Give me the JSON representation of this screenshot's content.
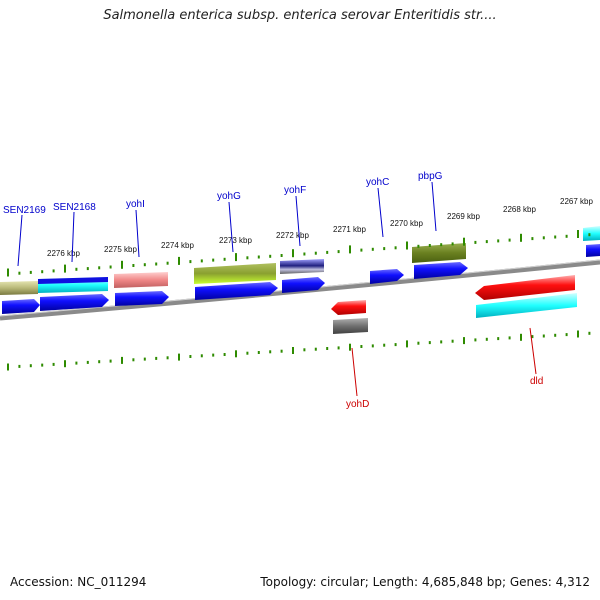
{
  "title": "Salmonella enterica subsp. enterica serovar Enteritidis str....",
  "footer": {
    "accession": "Accession: NC_011294",
    "info": "Topology: circular; Length: 4,685,848 bp; Genes: 4,312"
  },
  "colors": {
    "gene_label_top": "#0000cc",
    "gene_label_bottom": "#cc0000",
    "tick": "#2e8b00",
    "backbone": "#888888"
  },
  "scale_labels": [
    "2276 kbp",
    "2275 kbp",
    "2274 kbp",
    "2273 kbp",
    "2272 kbp",
    "2271 kbp",
    "2270 kbp",
    "2269 kbp",
    "2268 kbp",
    "2267 kbp"
  ],
  "gene_labels_forward": [
    "SEN2169",
    "SEN2168",
    "yohI",
    "yohG",
    "yohF",
    "yohC",
    "pbpG"
  ],
  "gene_labels_reverse": [
    "yohD",
    "dld"
  ]
}
